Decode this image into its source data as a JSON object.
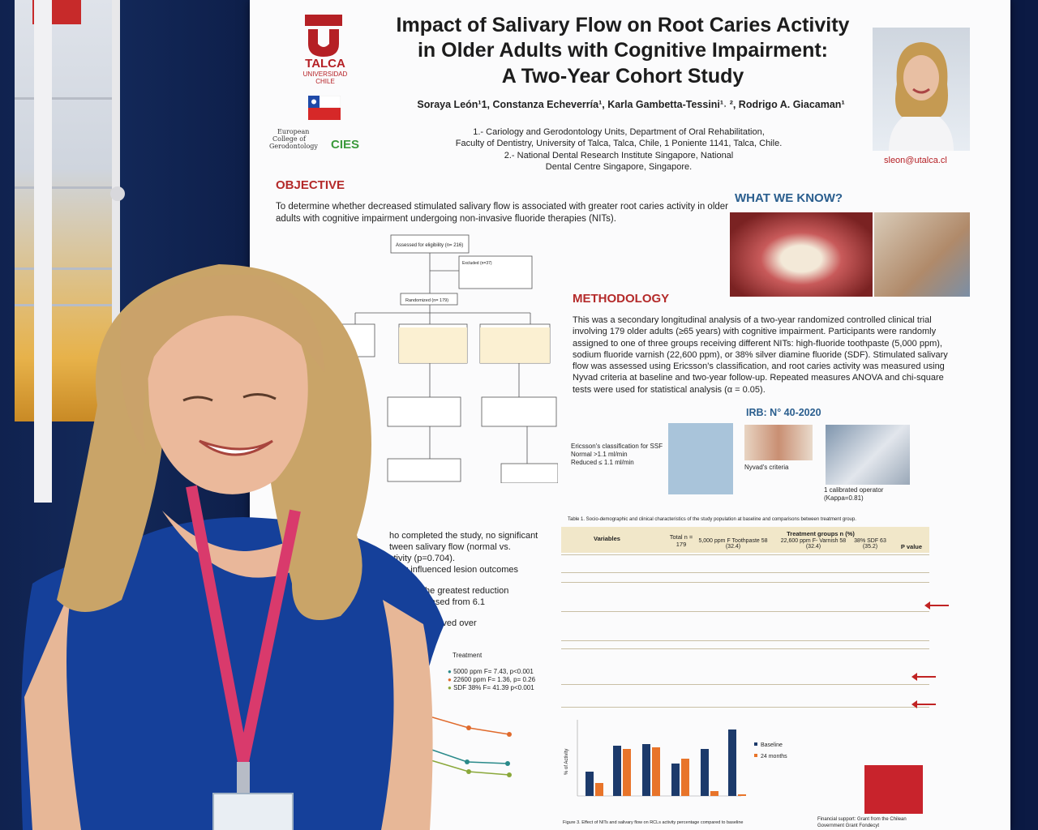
{
  "poster": {
    "title_lines": [
      "Impact of Salivary Flow on Root Caries Activity",
      "in Older Adults with Cognitive Impairment:",
      "A Two-Year Cohort Study"
    ],
    "authors": "Soraya León¹1, Constanza Echeverría¹, Karla Gambetta-Tessini¹˒ ², Rodrigo A. Giacaman¹",
    "affiliations": [
      "1.- Cariology and Gerodontology Units, Department of Oral Rehabilitation,",
      "Faculty of Dentistry, University of Talca, Talca, Chile, 1 Poniente 1141, Talca, Chile.",
      "2.- National Dental Research Institute Singapore, National",
      "Dental Centre Singapore, Singapore."
    ],
    "university": {
      "name": "TALCA",
      "sub": "UNIVERSIDAD",
      "country": "CHILE"
    },
    "college_logo_lines": [
      "European",
      "College of",
      "Gerodontology"
    ],
    "cies_label": "CIES",
    "email": "sleon@utalca.cl",
    "objective": {
      "heading": "OBJECTIVE",
      "text": "To determine whether decreased stimulated salivary flow is associated with greater root caries activity in older adults with cognitive impairment undergoing non-invasive fluoride therapies (NITs)."
    },
    "what_we_know": {
      "heading": "WHAT WE KNOW?"
    },
    "methodology": {
      "heading": "METHODOLOGY",
      "text": "This was a secondary longitudinal analysis of a two-year randomized controlled clinical trial involving 179 older adults (≥65 years) with cognitive impairment. Participants were randomly assigned to one of three groups receiving different NITs: high-fluoride toothpaste (5,000 ppm), sodium fluoride varnish (22,600 ppm), or 38% silver diamine fluoride (SDF). Stimulated salivary flow was assessed using Ericsson's classification, and root caries activity was measured using Nyvad criteria at baseline and two-year follow-up. Repeated measures ANOVA and chi-square tests were used for statistical analysis (α = 0.05)."
    },
    "irb": "IRB: N° 40-2020",
    "ericsson": [
      "Ericsson's classification for SSF",
      "Normal >1.1 ml/min",
      "Reduced ≤ 1.1 ml/min"
    ],
    "nyvad_label": "Nyvad's criteria",
    "operator": [
      "1 calibrated operator",
      "(Kappa=0.81)"
    ],
    "flow": {
      "assessed": "Assessed for eligibility (n= 216)",
      "excluded": "Excluded (n=37)",
      "randomized": "Randomized (n= 179)"
    },
    "results_partial": [
      "ho completed the study, no significant",
      "tween salivary flow (normal vs.",
      "ctivity (p=0.704).",
      "antly influenced lesion outcomes",
      "showed the greatest reduction",
      "ions decreased from 6.1",
      "w were observed over"
    ],
    "treatment_legend": {
      "title": "Treatment",
      "items": [
        "5000 ppm F= 7.43, p<0.001",
        "22600 ppm F= 1.36, p= 0.26",
        "SDF 38% F= 41.39 p<0.001"
      ]
    },
    "table_caption": "Table 1. Socio-demographic and clinical characteristics of the study population at baseline and comparisons between treatment group.",
    "table_headers": [
      "Variables",
      "Total n = 179",
      "Treatment groups n (%)",
      "P value"
    ],
    "table_groups": [
      "5,000 ppm F Toothpaste 58 (32.4)",
      "22,600 ppm F- Varnish 58 (32.4)",
      "38% SDF 63 (35.2)"
    ],
    "chart_legend": [
      "Baseline",
      "24 months"
    ],
    "chart_ylabel": "% of Activity",
    "figure_caption": "Figure 3. Effect of NITs and salivary flow on RCLs activity percentage compared to baseline",
    "funding": "Financial support: Grant from the Chilean Government Grant Fondecyt"
  }
}
